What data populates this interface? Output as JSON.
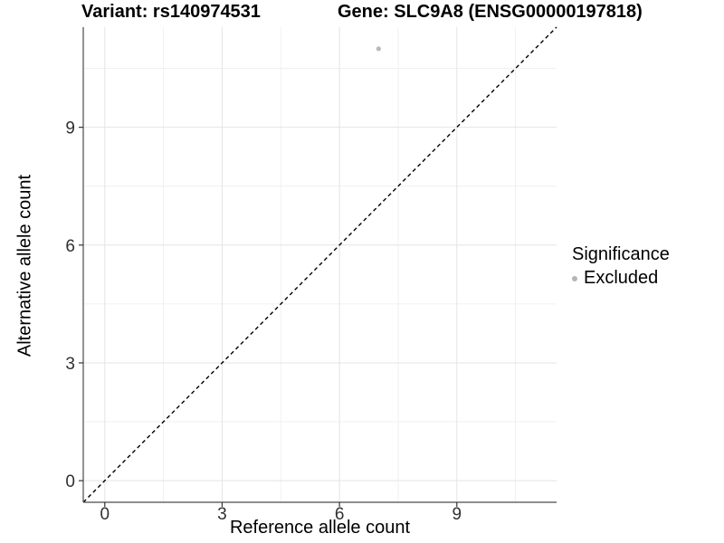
{
  "header": {
    "title_left": "Variant: rs140974531",
    "title_right": "Gene: SLC9A8 (ENSG00000197818)"
  },
  "chart_data": {
    "type": "scatter",
    "xlabel": "Reference allele count",
    "ylabel": "Alternative allele count",
    "xlim": [
      -0.55,
      11.55
    ],
    "ylim": [
      -0.55,
      11.55
    ],
    "x_major_ticks": [
      0,
      3,
      6,
      9
    ],
    "y_major_ticks": [
      0,
      3,
      6,
      9
    ],
    "x_minor_ticks": [
      1.5,
      4.5,
      7.5,
      10.5
    ],
    "y_minor_ticks": [
      1.5,
      4.5,
      7.5,
      10.5
    ],
    "grid": true,
    "points": [
      {
        "x": 7,
        "y": 11,
        "series": "Excluded"
      }
    ],
    "reference_line": {
      "kind": "identity",
      "slope": 1,
      "intercept": 0,
      "style": "dashed"
    },
    "legend": {
      "position": "right",
      "title": "Significance",
      "entries": [
        {
          "label": "Excluded",
          "color": "#b5b5b5"
        }
      ]
    }
  },
  "colors": {
    "background": "#ffffff",
    "grid_major": "#e4e4e4",
    "grid_minor": "#f0f0f0",
    "axis_line": "#4a4a4a",
    "tick_mark": "#333333",
    "tick_label": "#303030",
    "point": "#b9b9b9",
    "reference_line": "#000000"
  }
}
